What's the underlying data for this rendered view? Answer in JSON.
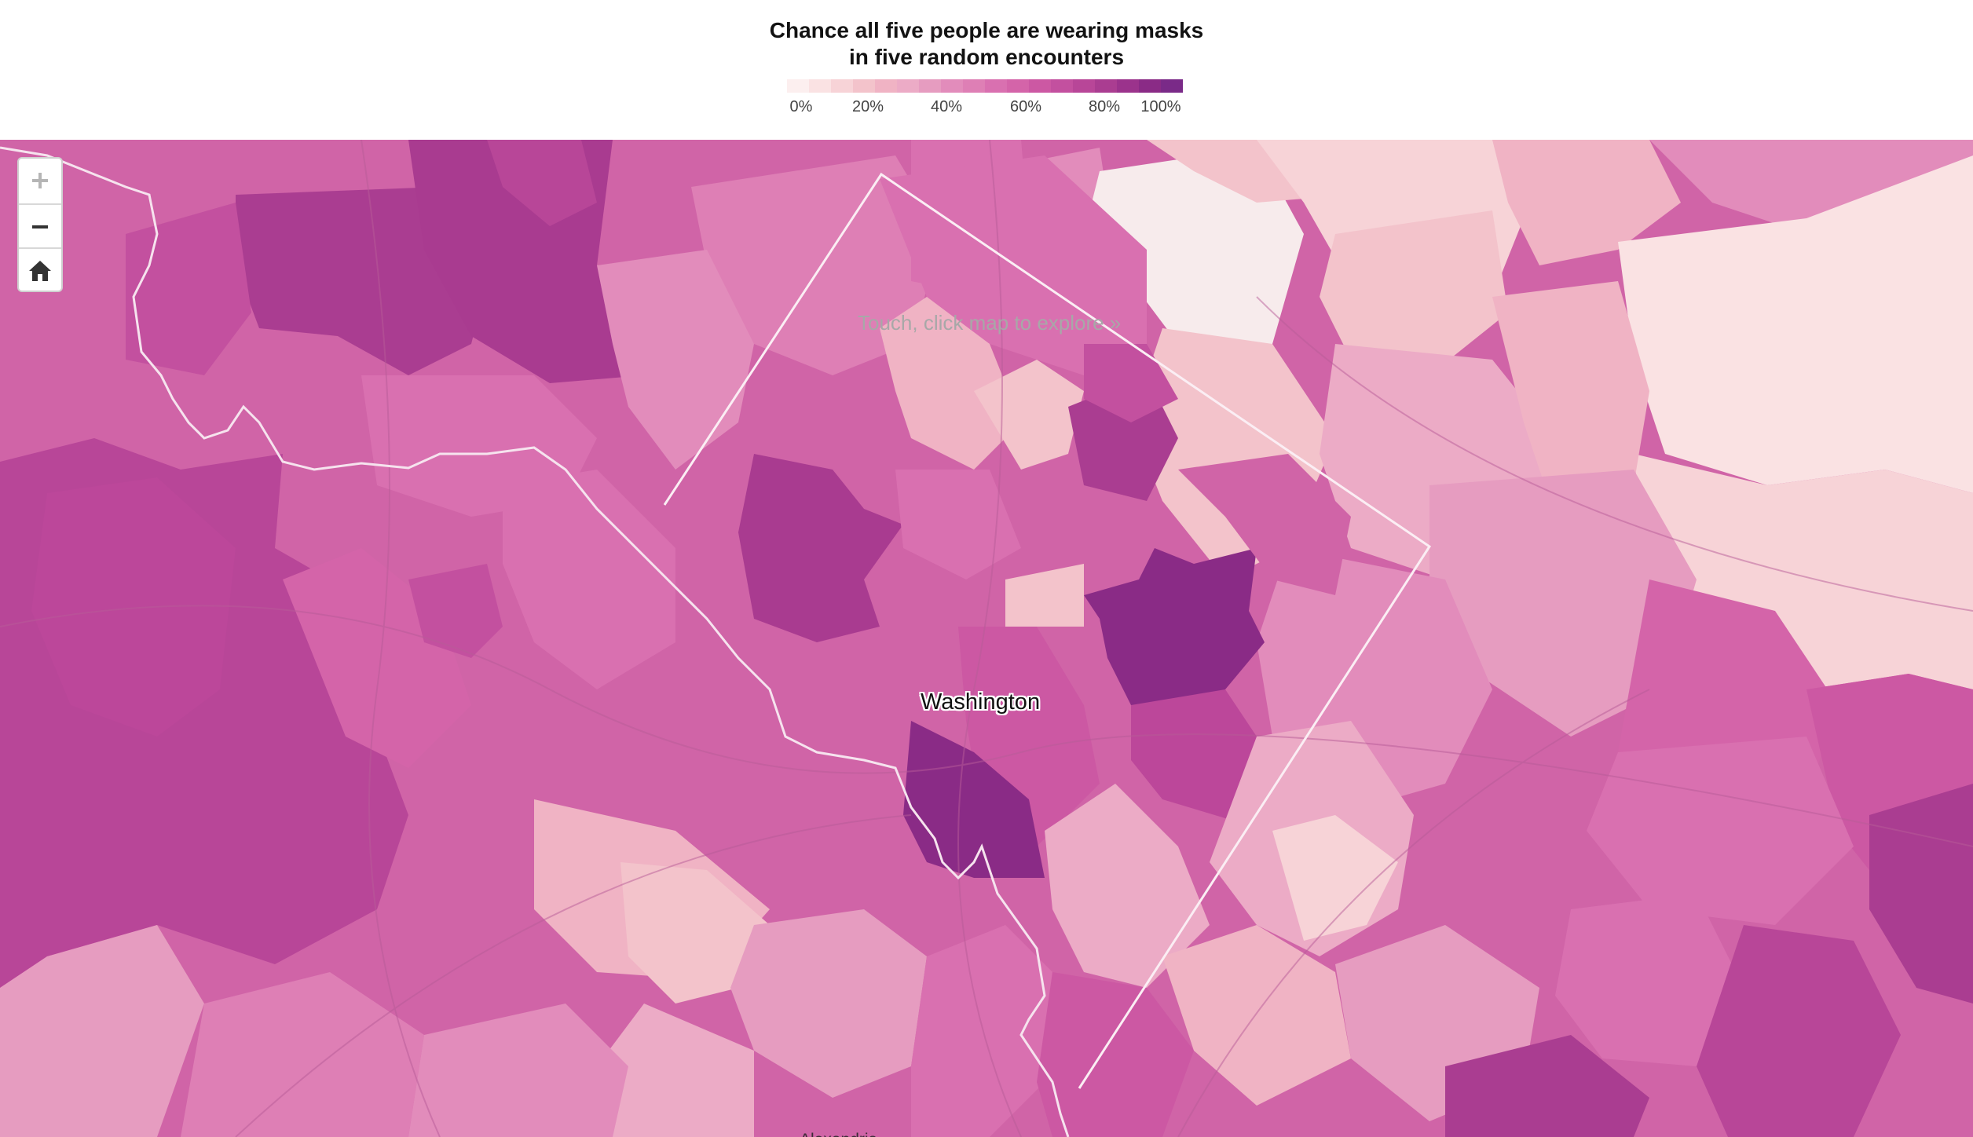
{
  "legend": {
    "title_line1": "Chance all five people are wearing masks",
    "title_line2": "in five random encounters",
    "ticks": [
      "0%",
      "20%",
      "40%",
      "60%",
      "80%",
      "100%"
    ],
    "colors": [
      "#fcefef",
      "#fae2e3",
      "#f7d3d7",
      "#f3c3cb",
      "#f0b3c4",
      "#ecabc6",
      "#e69cc0",
      "#e28cbb",
      "#de7fb5",
      "#d970b0",
      "#d464a9",
      "#cc58a3",
      "#c3509f",
      "#b84698",
      "#aa3d91",
      "#9b338c",
      "#8a2b86",
      "#7a2a88"
    ]
  },
  "map": {
    "hint": "Touch, click map to explore »",
    "labels": {
      "washington": "Washington",
      "alexandria": "Alexandria"
    }
  },
  "controls": {
    "zoom_in": "zoom-in",
    "zoom_out": "zoom-out",
    "home": "home"
  }
}
